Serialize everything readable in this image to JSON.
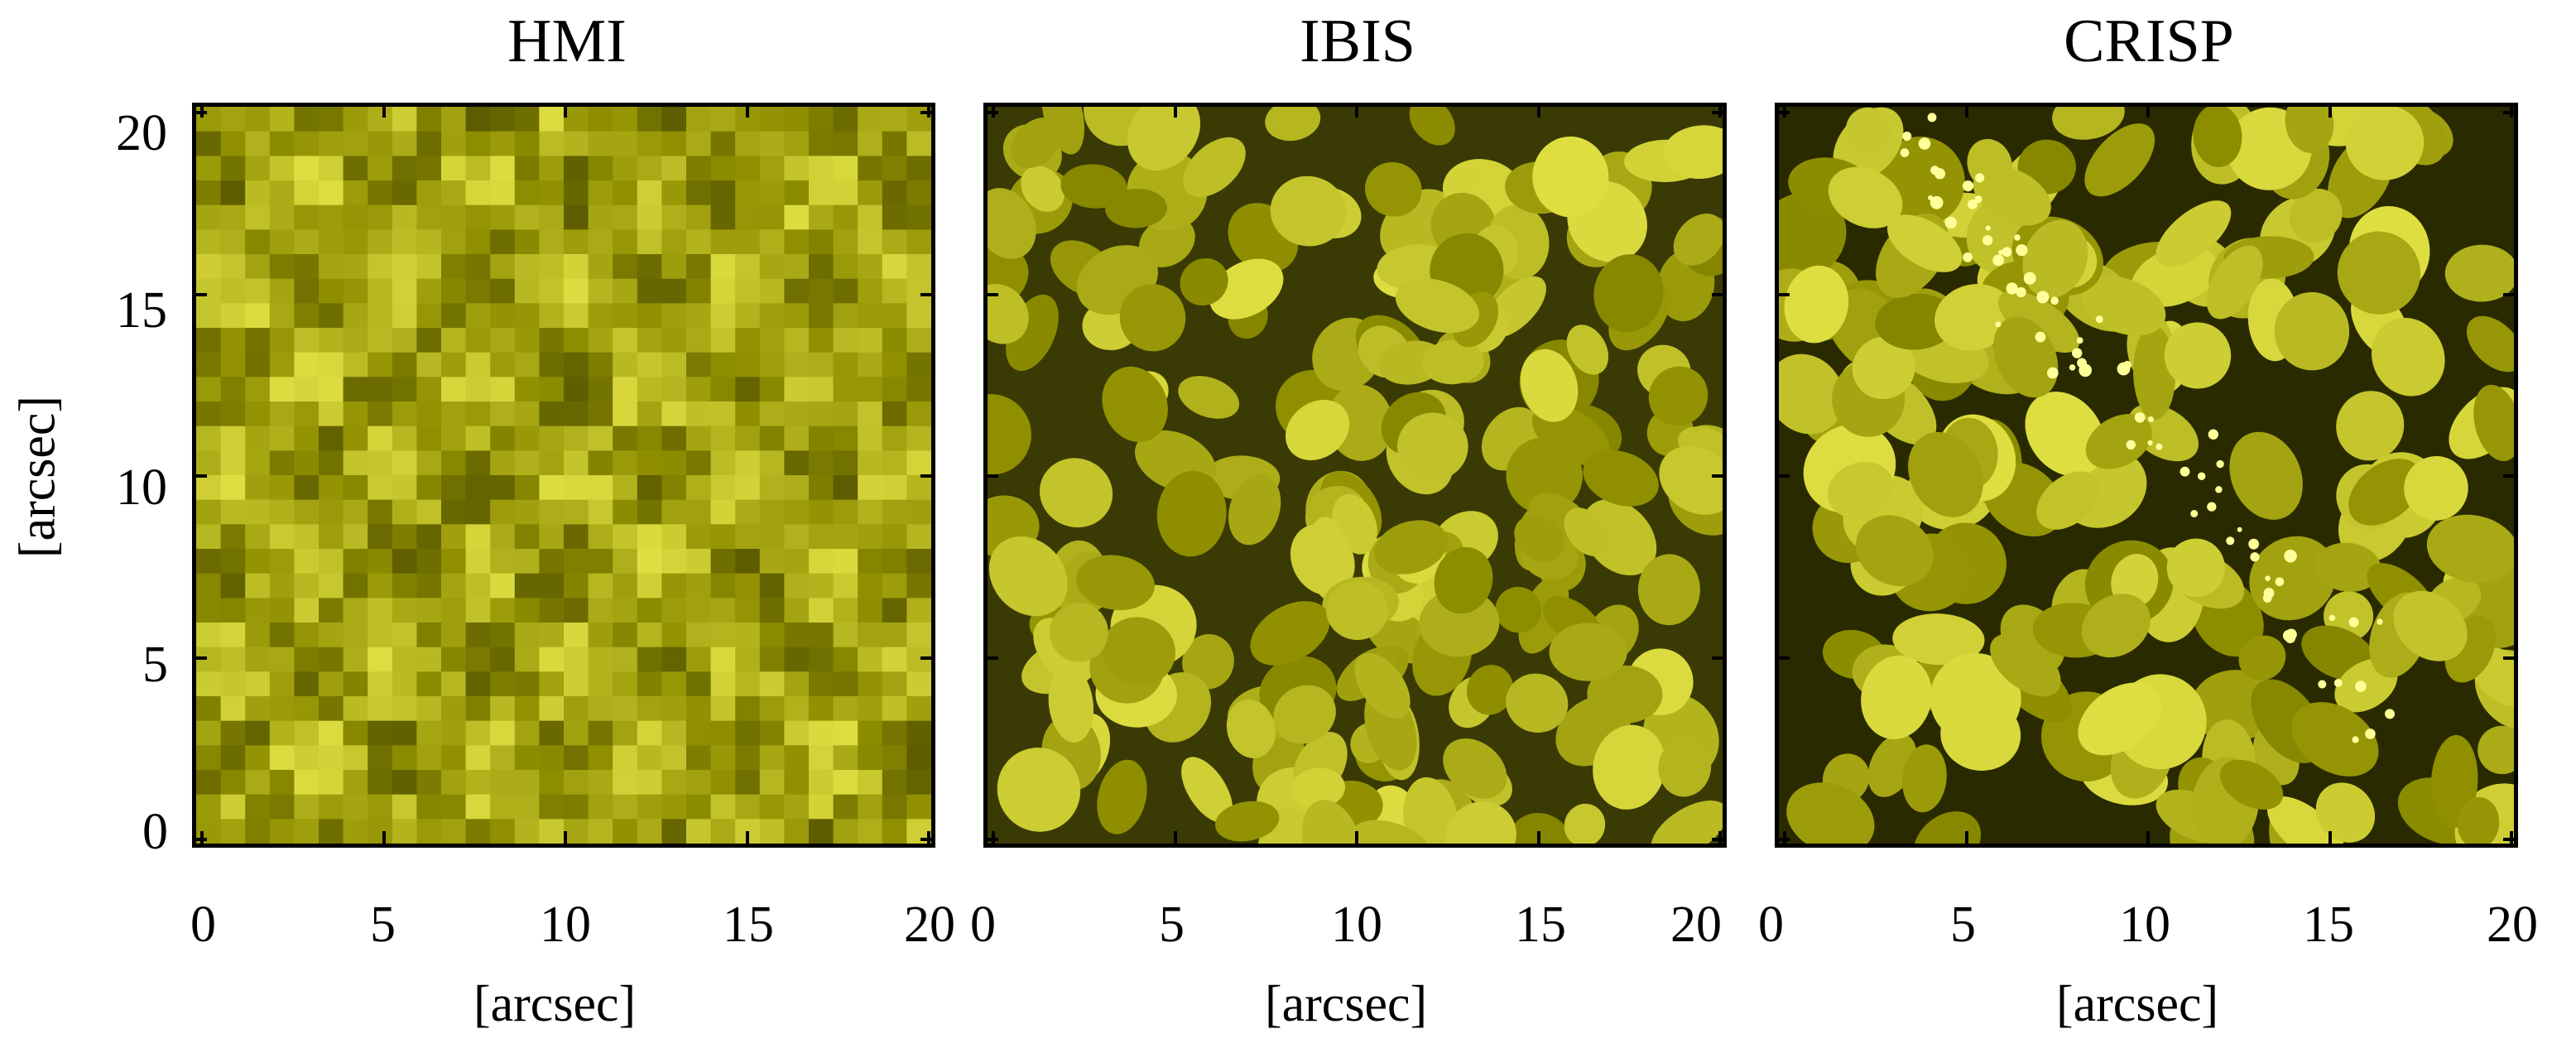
{
  "figure": {
    "panels": [
      {
        "title": "HMI",
        "style": "pixelated"
      },
      {
        "title": "IBIS",
        "style": "smooth"
      },
      {
        "title": "CRISP",
        "style": "sharp"
      }
    ],
    "ylabel": "[arcsec]",
    "xlabel": "[arcsec]",
    "x_ticks": [
      "0",
      "5",
      "10",
      "15",
      "20"
    ],
    "y_ticks": [
      "20",
      "15",
      "10",
      "5",
      "0"
    ],
    "colors": {
      "dark": "#2a2a00",
      "mid": "#8f8f00",
      "bright": "#e8e84a",
      "highlight": "#ffff9a"
    }
  }
}
